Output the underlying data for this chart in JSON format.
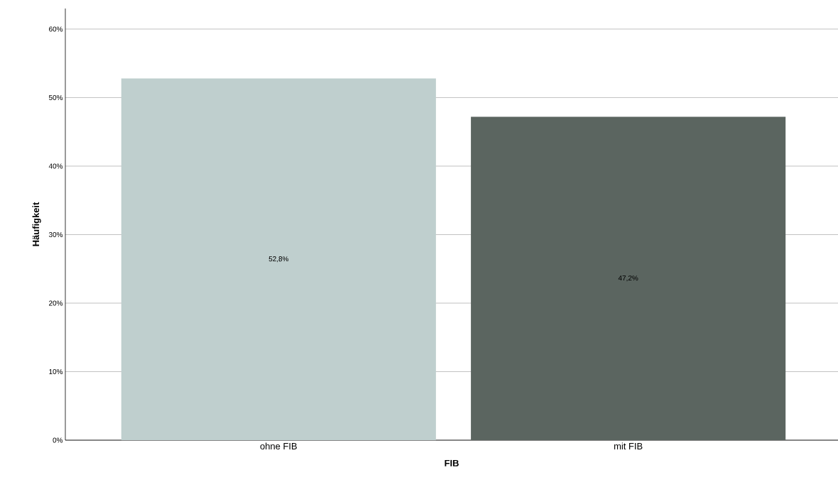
{
  "chart_data": {
    "type": "bar",
    "xlabel": "FIB",
    "ylabel": "Häufigkeit",
    "categories": [
      "ohne FIB",
      "mit FIB"
    ],
    "values": [
      52.8,
      47.2
    ],
    "colors": [
      "#bfcfce",
      "#5b6560"
    ],
    "value_labels": [
      "52,8%",
      "47,2%"
    ],
    "ylim": [
      0,
      63
    ],
    "yticks": [
      {
        "value": 0,
        "label": "0%"
      },
      {
        "value": 10,
        "label": "10%"
      },
      {
        "value": 20,
        "label": "20%"
      },
      {
        "value": 30,
        "label": "30%"
      },
      {
        "value": 40,
        "label": "40%"
      },
      {
        "value": 50,
        "label": "50%"
      },
      {
        "value": 60,
        "label": "60%"
      }
    ],
    "grid": "y"
  }
}
